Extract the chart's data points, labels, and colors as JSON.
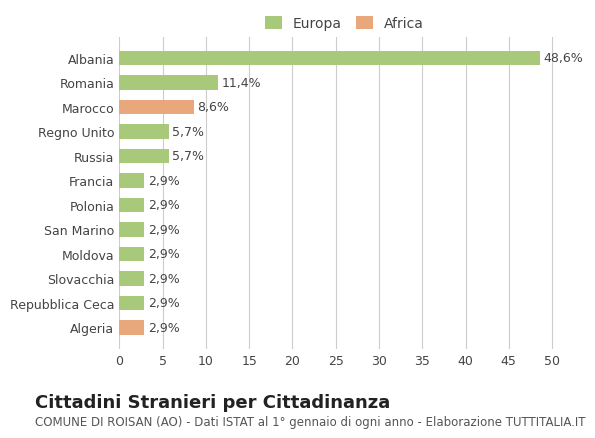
{
  "countries": [
    "Albania",
    "Romania",
    "Marocco",
    "Regno Unito",
    "Russia",
    "Francia",
    "Polonia",
    "San Marino",
    "Moldova",
    "Slovacchia",
    "Repubblica Ceca",
    "Algeria"
  ],
  "values": [
    48.6,
    11.4,
    8.6,
    5.7,
    5.7,
    2.9,
    2.9,
    2.9,
    2.9,
    2.9,
    2.9,
    2.9
  ],
  "labels": [
    "48,6%",
    "11,4%",
    "8,6%",
    "5,7%",
    "5,7%",
    "2,9%",
    "2,9%",
    "2,9%",
    "2,9%",
    "2,9%",
    "2,9%",
    "2,9%"
  ],
  "colors": [
    "#a8c87a",
    "#a8c87a",
    "#e8a87c",
    "#a8c87a",
    "#a8c87a",
    "#a8c87a",
    "#a8c87a",
    "#a8c87a",
    "#a8c87a",
    "#a8c87a",
    "#a8c87a",
    "#e8a87c"
  ],
  "europa_color": "#a8c87a",
  "africa_color": "#e8a87c",
  "background_color": "#ffffff",
  "grid_color": "#cccccc",
  "xlim": [
    0,
    52
  ],
  "xticks": [
    0,
    5,
    10,
    15,
    20,
    25,
    30,
    35,
    40,
    45,
    50
  ],
  "title": "Cittadini Stranieri per Cittadinanza",
  "subtitle": "COMUNE DI ROISAN (AO) - Dati ISTAT al 1° gennaio di ogni anno - Elaborazione TUTTITALIA.IT",
  "legend_europa": "Europa",
  "legend_africa": "Africa",
  "bar_height": 0.6,
  "label_fontsize": 9,
  "tick_fontsize": 9,
  "title_fontsize": 13,
  "subtitle_fontsize": 8.5
}
